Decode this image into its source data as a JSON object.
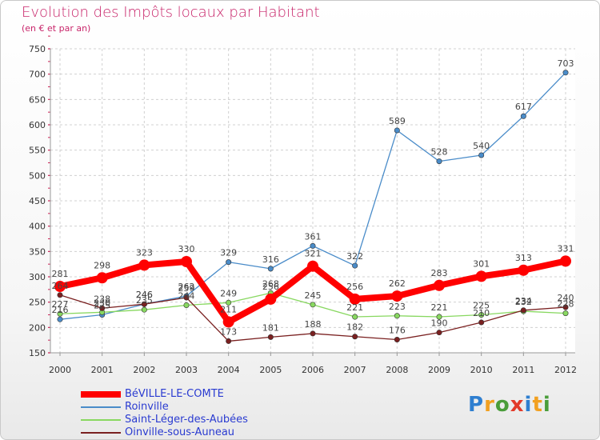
{
  "chart_data": {
    "type": "line",
    "title": "Evolution des Impôts locaux par Habitant",
    "subtitle": "(en € et par an)",
    "x": [
      "2000",
      "2001",
      "2002",
      "2003",
      "2004",
      "2005",
      "2006",
      "2007",
      "2008",
      "2009",
      "2010",
      "2011",
      "2012"
    ],
    "ylim": [
      150,
      750
    ],
    "yticks": [
      150,
      200,
      250,
      300,
      350,
      400,
      450,
      500,
      550,
      600,
      650,
      700,
      750
    ],
    "grid": true,
    "legend_position": "bottom-left",
    "series": [
      {
        "name": "BéVILLE-LE-COMTE",
        "color": "#ff0000",
        "values": [
          281,
          298,
          323,
          330,
          211,
          256,
          321,
          256,
          262,
          283,
          301,
          313,
          331
        ]
      },
      {
        "name": "Roinville",
        "color": "#4a8cc9",
        "values": [
          216,
          225,
          246,
          262,
          329,
          316,
          361,
          322,
          589,
          528,
          540,
          617,
          703
        ]
      },
      {
        "name": "Saint-Léger-des-Aubées",
        "color": "#88d860",
        "values": [
          227,
          230,
          235,
          244,
          249,
          268,
          245,
          221,
          223,
          221,
          225,
          232,
          228
        ]
      },
      {
        "name": "Oinville-sous-Auneau",
        "color": "#7a2020",
        "values": [
          264,
          238,
          246,
          259,
          173,
          181,
          188,
          182,
          176,
          190,
          210,
          234,
          240
        ]
      }
    ]
  },
  "logo": {
    "text": "Proxiti"
  }
}
